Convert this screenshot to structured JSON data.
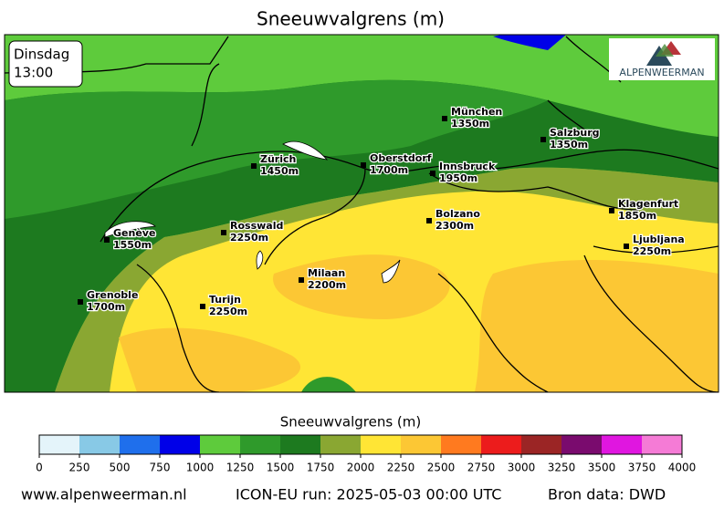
{
  "title": "Sneeuwvalgrens (m)",
  "time_box": {
    "day": "Dinsdag",
    "time": "13:00"
  },
  "logo": "ALPENWEERMAN",
  "cities": [
    {
      "name": "München",
      "snow_line": "1350m"
    },
    {
      "name": "Salzburg",
      "snow_line": "1350m"
    },
    {
      "name": "Zürich",
      "snow_line": "1450m"
    },
    {
      "name": "Oberstdorf",
      "snow_line": "1700m"
    },
    {
      "name": "Innsbruck",
      "snow_line": "1950m"
    },
    {
      "name": "Klagenfurt",
      "snow_line": "1850m"
    },
    {
      "name": "Bolzano",
      "snow_line": "2300m"
    },
    {
      "name": "Rosswald",
      "snow_line": "2250m"
    },
    {
      "name": "Genève",
      "snow_line": "1550m"
    },
    {
      "name": "Ljubljana",
      "snow_line": "2250m"
    },
    {
      "name": "Milaan",
      "snow_line": "2200m"
    },
    {
      "name": "Grenoble",
      "snow_line": "1700m"
    },
    {
      "name": "Turijn",
      "snow_line": "2250m"
    }
  ],
  "colorbar": {
    "title": "Sneeuwvalgrens (m)",
    "ticks": [
      0,
      250,
      500,
      750,
      1000,
      1250,
      1500,
      1750,
      2000,
      2250,
      2500,
      2750,
      3000,
      3250,
      3500,
      3750,
      4000
    ],
    "colors": [
      "#e4f4fa",
      "#88c9e6",
      "#1f6fec",
      "#0000e8",
      "#5ecb3c",
      "#2f9a2b",
      "#1d7a1f",
      "#8aa732",
      "#ffe535",
      "#fcc734",
      "#ff7a1f",
      "#ec1c1c",
      "#9b2525",
      "#7a0b6e",
      "#e016e0",
      "#f57bd6"
    ]
  },
  "footer": {
    "website": "www.alpenweerman.nl",
    "run": "ICON-EU run: 2025-05-03 00:00 UTC",
    "source": "Bron data: DWD"
  }
}
